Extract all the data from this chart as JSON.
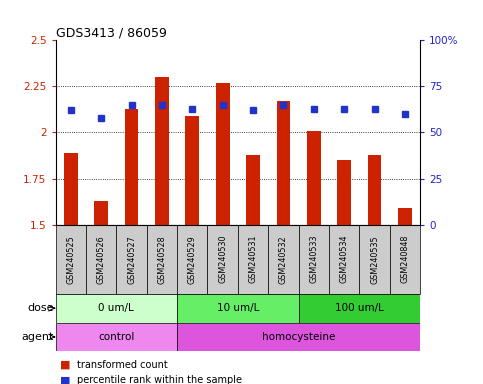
{
  "title": "GDS3413 / 86059",
  "samples": [
    "GSM240525",
    "GSM240526",
    "GSM240527",
    "GSM240528",
    "GSM240529",
    "GSM240530",
    "GSM240531",
    "GSM240532",
    "GSM240533",
    "GSM240534",
    "GSM240535",
    "GSM240848"
  ],
  "transformed_count": [
    1.89,
    1.63,
    2.13,
    2.3,
    2.09,
    2.27,
    1.88,
    2.17,
    2.01,
    1.85,
    1.88,
    1.59
  ],
  "percentile_rank": [
    62,
    58,
    65,
    65,
    63,
    65,
    62,
    65,
    63,
    63,
    63,
    60
  ],
  "ylim_left": [
    1.5,
    2.5
  ],
  "ylim_right": [
    0,
    100
  ],
  "yticks_left": [
    1.5,
    1.75,
    2.0,
    2.25,
    2.5
  ],
  "yticks_right": [
    0,
    25,
    50,
    75,
    100
  ],
  "ytick_labels_left": [
    "1.5",
    "1.75",
    "2",
    "2.25",
    "2.5"
  ],
  "ytick_labels_right": [
    "0",
    "25",
    "50",
    "75",
    "100%"
  ],
  "bar_color": "#cc2200",
  "dot_color": "#2233cc",
  "dose_groups": [
    {
      "label": "0 um/L",
      "start": 0,
      "end": 3,
      "color": "#ccffcc"
    },
    {
      "label": "10 um/L",
      "start": 4,
      "end": 7,
      "color": "#66ee66"
    },
    {
      "label": "100 um/L",
      "start": 8,
      "end": 11,
      "color": "#33cc33"
    }
  ],
  "agent_groups": [
    {
      "label": "control",
      "start": 0,
      "end": 3,
      "color": "#ee88ee"
    },
    {
      "label": "homocysteine",
      "start": 4,
      "end": 11,
      "color": "#dd55dd"
    }
  ],
  "dose_label": "dose",
  "agent_label": "agent",
  "legend_bar_label": "transformed count",
  "legend_dot_label": "percentile rank within the sample",
  "bg_color": "#ffffff",
  "sample_bg": "#cccccc",
  "left_axis_color": "#cc2200",
  "right_axis_color": "#2222cc"
}
